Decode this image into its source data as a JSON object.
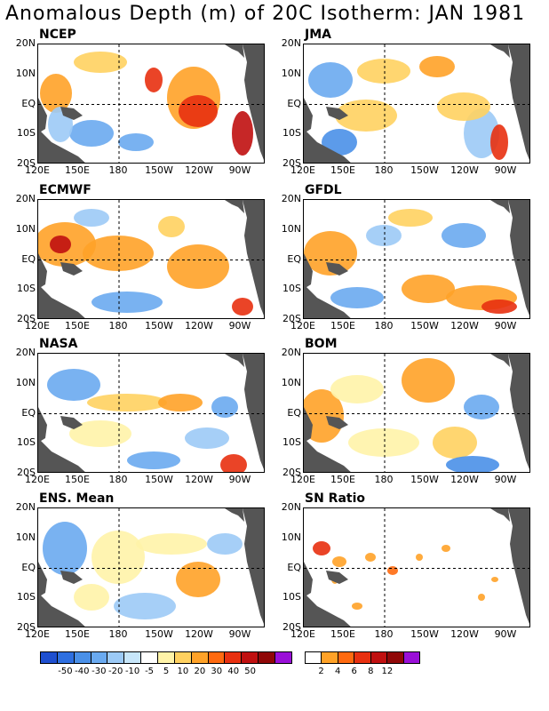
{
  "title": "Anomalous Depth (m) of 20C Isotherm: JAN 1981",
  "panels": [
    {
      "label": "NCEP"
    },
    {
      "label": "JMA"
    },
    {
      "label": "ECMWF"
    },
    {
      "label": "GFDL"
    },
    {
      "label": "NASA"
    },
    {
      "label": "BOM"
    },
    {
      "label": "ENS. Mean"
    },
    {
      "label": "SN Ratio"
    }
  ],
  "lat_ticks": [
    "20N",
    "10N",
    "EQ",
    "10S",
    "20S"
  ],
  "lon_ticks": [
    "120E",
    "150E",
    "180",
    "150W",
    "120W",
    "90W"
  ],
  "depth_colorbar": {
    "colors": [
      "#1e4fd0",
      "#2e6fe0",
      "#4a90e8",
      "#6aaaf0",
      "#9ccaf6",
      "#c7e6fa",
      "#ffffff",
      "#fff3a8",
      "#ffd160",
      "#ffa228",
      "#ff6a10",
      "#e83010",
      "#c01010",
      "#900808",
      "#9a10d8"
    ],
    "labels": [
      "-50",
      "-40",
      "-30",
      "-20",
      "-10",
      "-5",
      "5",
      "10",
      "20",
      "30",
      "40",
      "50"
    ]
  },
  "sn_colorbar": {
    "colors": [
      "#ffffff",
      "#ffa228",
      "#ff6a10",
      "#e83010",
      "#c01010",
      "#900808",
      "#9a10d8"
    ],
    "labels": [
      "2",
      "4",
      "6",
      "8",
      "12"
    ]
  },
  "land_color": "#555555"
}
